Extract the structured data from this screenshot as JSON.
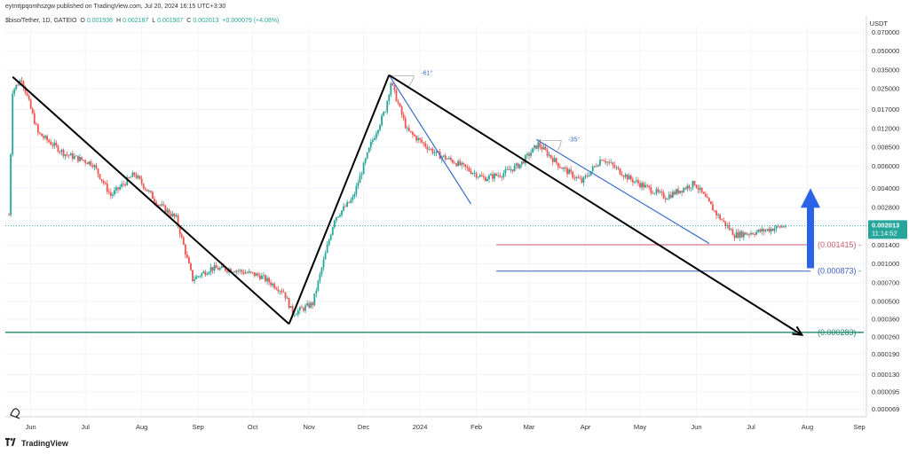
{
  "header": {
    "published": "eytmtjpqomhszgw published on TradingView.com, Jul 20, 2024 16:15 UTC+3:30",
    "symbol": "$biso/Tether, 1D, GATEIO",
    "o_label": "O",
    "o": "0.001936",
    "h_label": "H",
    "h": "0.002187",
    "l_label": "L",
    "l": "0.001907",
    "c_label": "C",
    "c": "0.002013",
    "change": "+0.000079 (+4.08%)"
  },
  "axis_unit": "USDT",
  "footer": {
    "brand": "TradingView",
    "logo_icon": "tradingview-logo-icon"
  },
  "colors": {
    "up": "#26a69a",
    "down": "#ef5350",
    "trend": "#000000",
    "channel": "#3a6cc8",
    "red_level": "#d05a6e",
    "blue_level": "#3a5fc8",
    "green_level": "#1e8a6e",
    "arrow": "#2a62e8"
  },
  "chart_data": {
    "type": "candlestick",
    "y_scale": "log",
    "ylim": [
      6e-05,
      0.078
    ],
    "x_tick_labels": [
      "Jun",
      "Jul",
      "Aug",
      "Sep",
      "Oct",
      "Nov",
      "Dec",
      "2024",
      "Feb",
      "Mar",
      "Apr",
      "May",
      "Jun",
      "Jul",
      "Aug",
      "Sep"
    ],
    "y_tick_labels": [
      "0.070000",
      "0.050000",
      "0.035000",
      "0.025000",
      "0.017000",
      "0.012000",
      "0.008500",
      "0.006000",
      "0.004000",
      "0.002800",
      "0.001400",
      "0.001000",
      "0.000700",
      "0.000500",
      "0.000360",
      "0.000260",
      "0.000190",
      "0.000130",
      "0.000095",
      "0.000069"
    ],
    "last_price": {
      "value": "0.002013",
      "countdown": "11:14:52"
    },
    "levels": [
      {
        "label": "(0.001415)",
        "value": 0.001415
      },
      {
        "label": "(0.000873)",
        "value": 0.000873
      },
      {
        "label": "(0.000283)",
        "value": 0.000283
      }
    ],
    "angle_labels": [
      "-61°",
      "-35°"
    ],
    "price_path": [
      [
        "2023-05-20",
        0.00245
      ],
      [
        "2023-05-22",
        0.024
      ],
      [
        "2023-05-27",
        0.03
      ],
      [
        "2023-06-05",
        0.011
      ],
      [
        "2023-06-20",
        0.0075
      ],
      [
        "2023-07-05",
        0.0063
      ],
      [
        "2023-07-15",
        0.0035
      ],
      [
        "2023-07-28",
        0.0052
      ],
      [
        "2023-08-10",
        0.003
      ],
      [
        "2023-08-20",
        0.0023
      ],
      [
        "2023-08-29",
        0.00075
      ],
      [
        "2023-09-08",
        0.00092
      ],
      [
        "2023-09-20",
        0.0009
      ],
      [
        "2023-10-05",
        0.0008
      ],
      [
        "2023-10-18",
        0.0006
      ],
      [
        "2023-10-23",
        0.0004
      ],
      [
        "2023-11-03",
        0.00048
      ],
      [
        "2023-11-15",
        0.0023
      ],
      [
        "2023-11-25",
        0.0033
      ],
      [
        "2023-12-05",
        0.009
      ],
      [
        "2023-12-13",
        0.017
      ],
      [
        "2023-12-16",
        0.028
      ],
      [
        "2023-12-25",
        0.0115
      ],
      [
        "2024-01-10",
        0.0075
      ],
      [
        "2024-01-20",
        0.0065
      ],
      [
        "2024-02-05",
        0.0048
      ],
      [
        "2024-02-15",
        0.0052
      ],
      [
        "2024-02-25",
        0.0062
      ],
      [
        "2024-03-06",
        0.009
      ],
      [
        "2024-03-18",
        0.006
      ],
      [
        "2024-03-30",
        0.0045
      ],
      [
        "2024-04-10",
        0.007
      ],
      [
        "2024-04-25",
        0.0048
      ],
      [
        "2024-05-15",
        0.0034
      ],
      [
        "2024-05-31",
        0.0044
      ],
      [
        "2024-06-12",
        0.0025
      ],
      [
        "2024-06-22",
        0.0017
      ],
      [
        "2024-07-05",
        0.0018
      ],
      [
        "2024-07-20",
        0.00201
      ]
    ],
    "trend_lines": [
      {
        "from": [
          "2023-05-22",
          0.031
        ],
        "to": [
          "2023-10-21",
          0.00033
        ]
      },
      {
        "from": [
          "2023-10-21",
          0.00033
        ],
        "to": [
          "2023-12-15",
          0.032
        ]
      },
      {
        "from": [
          "2023-12-15",
          0.032
        ],
        "to": [
          "2024-07-29",
          0.00027
        ],
        "arrow": true
      }
    ],
    "channel_lines": [
      {
        "from": [
          "2023-12-15",
          0.032
        ],
        "to": [
          "2024-01-29",
          0.003
        ]
      },
      {
        "from": [
          "2024-03-05",
          0.0098
        ],
        "to": [
          "2024-06-08",
          0.00145
        ]
      }
    ]
  }
}
